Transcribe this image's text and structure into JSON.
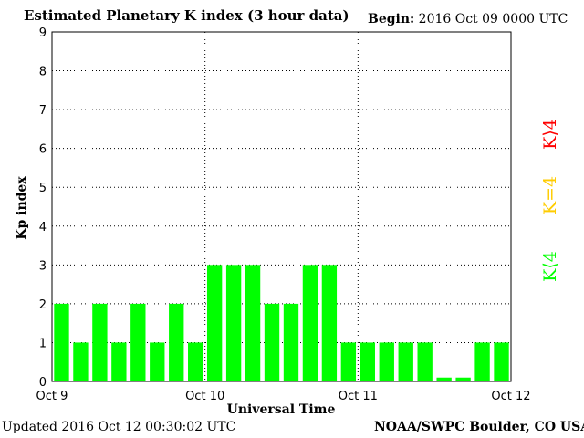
{
  "header": {
    "title": "Estimated Planetary K index (3 hour data)",
    "begin_label": "Begin:",
    "begin_value": "2016 Oct 09 0000 UTC"
  },
  "footer": {
    "updated": "Updated 2016 Oct 12 00:30:02 UTC",
    "credit": "NOAA/SWPC Boulder, CO USA"
  },
  "legend": {
    "storm": "K⟩4",
    "equal": "K=4",
    "quiet": "K⟨4",
    "storm_color": "#ff0000",
    "equal_color": "#ffcc00",
    "quiet_color": "#00ff00"
  },
  "colors": {
    "bar": "#00ff00"
  },
  "chart_data": {
    "type": "bar",
    "xlabel": "Universal Time",
    "ylabel": "Kp index",
    "ylim": [
      0,
      9
    ],
    "yticks": [
      "0",
      "1",
      "2",
      "3",
      "4",
      "5",
      "6",
      "7",
      "8",
      "9"
    ],
    "xticks": [
      "Oct 9",
      "Oct 10",
      "Oct 11",
      "Oct 12"
    ],
    "values": [
      2,
      1,
      2,
      1,
      2,
      1,
      2,
      1,
      3,
      3,
      3,
      2,
      2,
      3,
      3,
      1,
      1,
      1,
      1,
      1,
      0.1,
      0.1,
      1,
      1
    ],
    "grid": true
  }
}
